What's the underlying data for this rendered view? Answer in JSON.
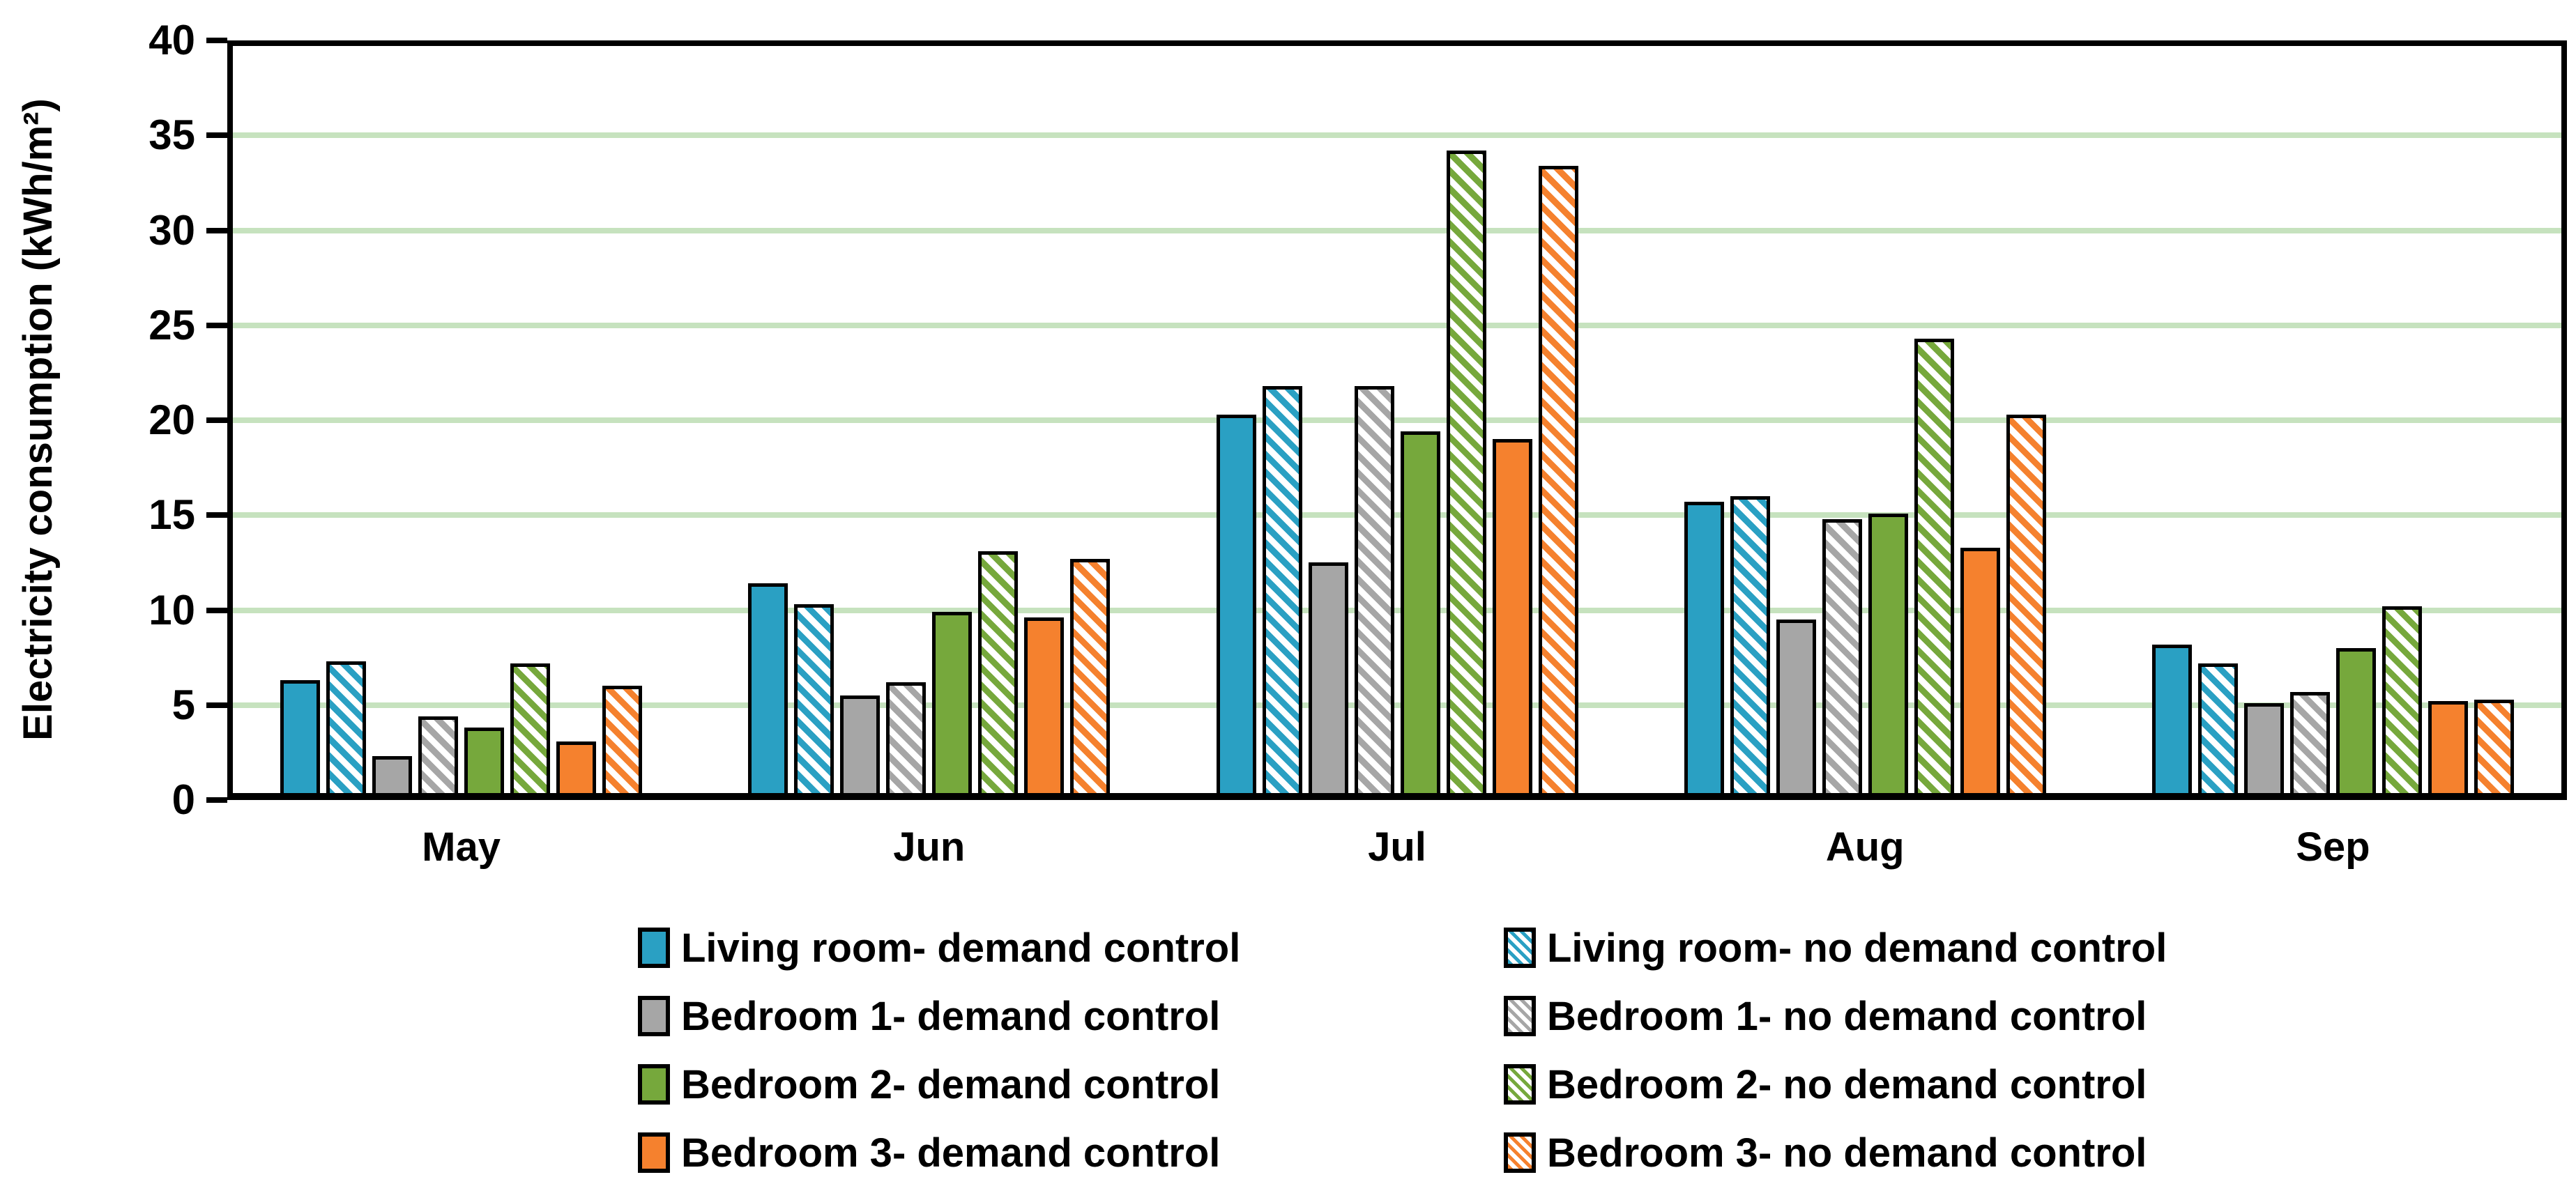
{
  "chart_data": {
    "type": "bar",
    "title": "",
    "ylabel": "Electricity consumption (kWh/m²)",
    "xlabel": "",
    "ylim": [
      0,
      40
    ],
    "ytick_step": 5,
    "yticks": [
      0,
      5,
      10,
      15,
      20,
      25,
      30,
      35,
      40
    ],
    "grid": "horizontal",
    "gridline_color": "#c6e2be",
    "axis_color": "#000000",
    "background_color": "#ffffff",
    "categories": [
      "May",
      "Jun",
      "Jul",
      "Aug",
      "Sep"
    ],
    "series": [
      {
        "name": "Living room- demand control",
        "color": "#2aa0c3",
        "pattern": "solid",
        "values": [
          6.3,
          11.4,
          20.3,
          15.7,
          8.2
        ]
      },
      {
        "name": "Living room- no demand control",
        "color": "#2aa0c3",
        "pattern": "hatch",
        "values": [
          7.3,
          10.3,
          21.8,
          16.0,
          7.2
        ]
      },
      {
        "name": "Bedroom 1- demand control",
        "color": "#a6a6a6",
        "pattern": "solid",
        "values": [
          2.3,
          5.5,
          12.5,
          9.5,
          5.1
        ]
      },
      {
        "name": "Bedroom 1- no demand control",
        "color": "#a6a6a6",
        "pattern": "hatch",
        "values": [
          4.4,
          6.2,
          21.8,
          14.8,
          5.7
        ]
      },
      {
        "name": "Bedroom 2- demand control",
        "color": "#76a83c",
        "pattern": "solid",
        "values": [
          3.8,
          9.9,
          19.4,
          15.1,
          8.0
        ]
      },
      {
        "name": "Bedroom 2- no demand control",
        "color": "#76a83c",
        "pattern": "hatch",
        "values": [
          7.2,
          13.1,
          34.2,
          24.3,
          10.2
        ]
      },
      {
        "name": "Bedroom 3- demand control",
        "color": "#f5812e",
        "pattern": "solid",
        "values": [
          3.1,
          9.6,
          19.0,
          13.3,
          5.2
        ]
      },
      {
        "name": "Bedroom 3- no demand control",
        "color": "#f5812e",
        "pattern": "hatch",
        "values": [
          6.0,
          12.7,
          33.4,
          20.3,
          5.3
        ]
      }
    ],
    "legend_position": "bottom",
    "legend_columns": [
      [
        0,
        2,
        4,
        6
      ],
      [
        1,
        3,
        5,
        7
      ]
    ]
  }
}
